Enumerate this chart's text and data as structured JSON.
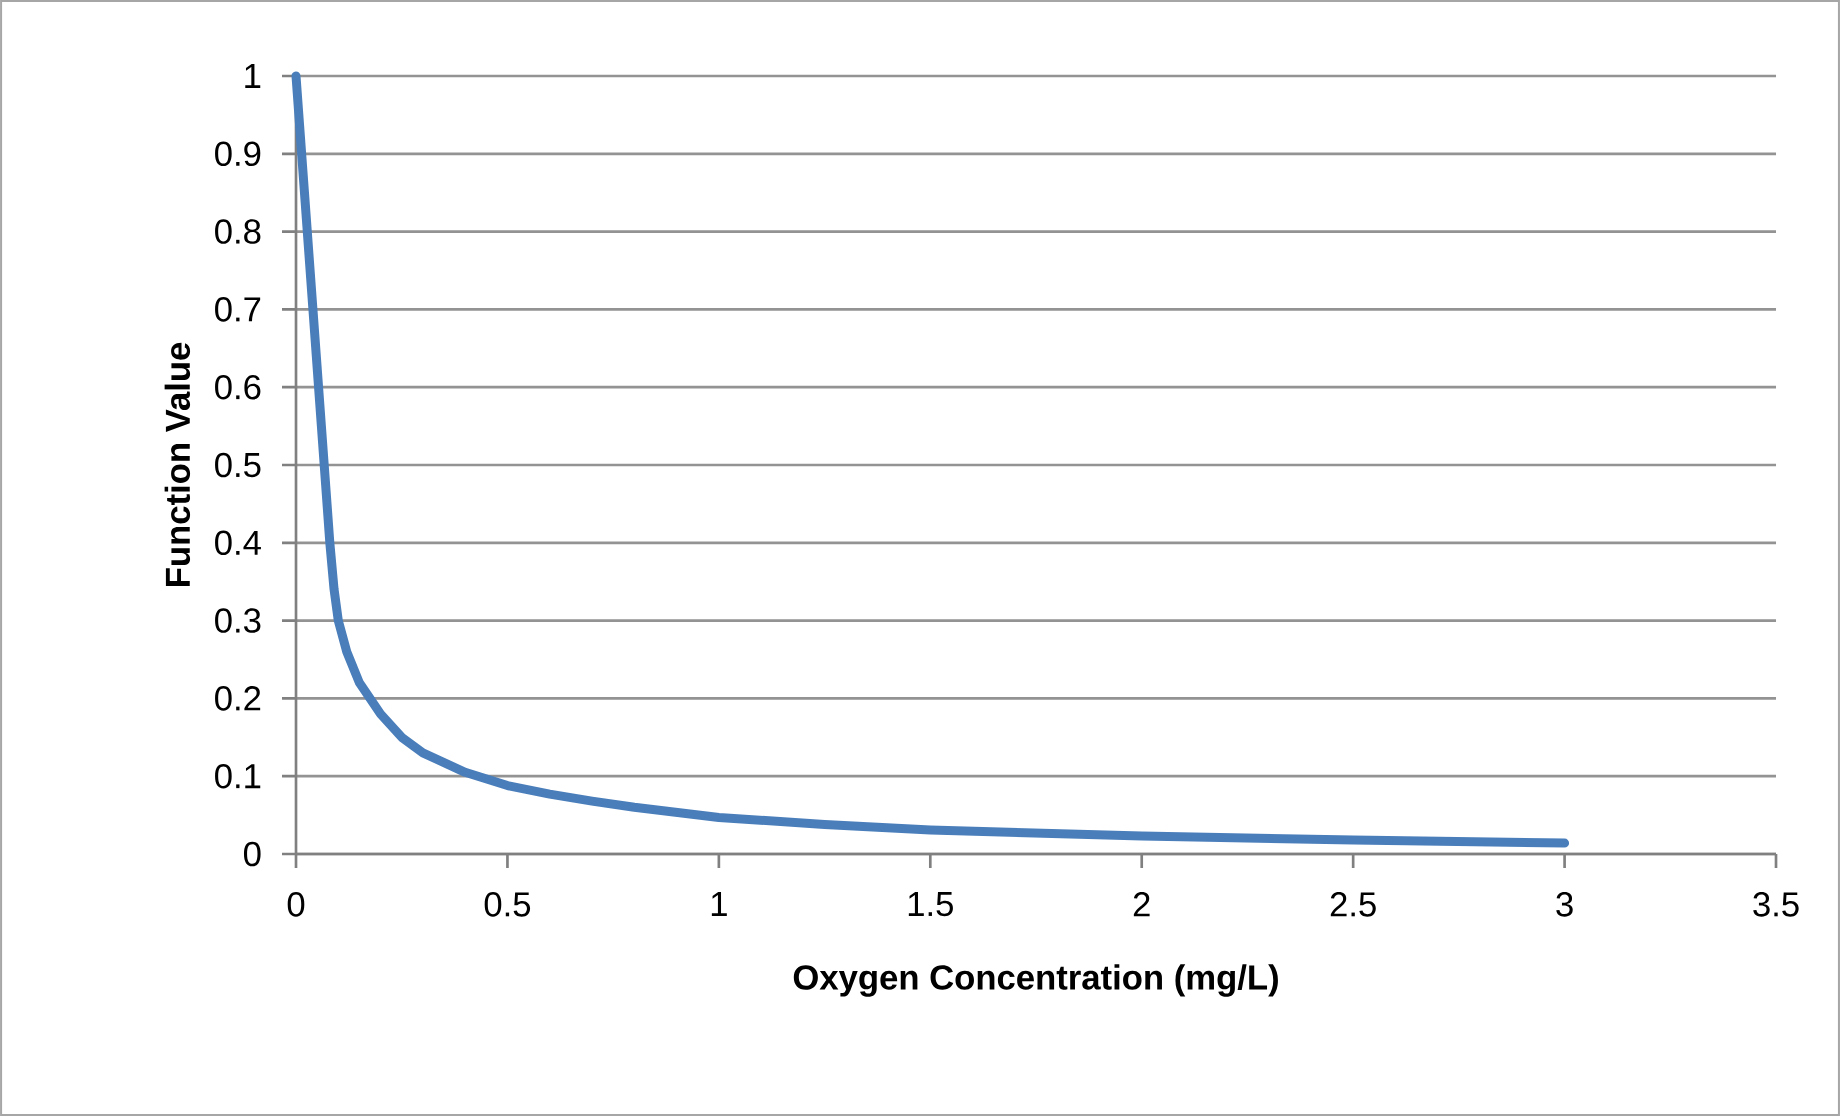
{
  "chart_data": {
    "type": "line",
    "xlabel": "Oxygen Concentration (mg/L)",
    "ylabel": "Function Value",
    "series": [
      {
        "color": "#4a7ebb",
        "x": [
          0,
          0.02,
          0.04,
          0.06,
          0.08,
          0.09,
          0.1,
          0.12,
          0.15,
          0.2,
          0.25,
          0.3,
          0.4,
          0.5,
          0.6,
          0.7,
          0.8,
          1,
          1.25,
          1.5,
          2,
          2.5,
          3
        ],
        "values": [
          1,
          0.85,
          0.7,
          0.55,
          0.4,
          0.34,
          0.3,
          0.26,
          0.22,
          0.18,
          0.15,
          0.13,
          0.105,
          0.088,
          0.077,
          0.068,
          0.06,
          0.047,
          0.038,
          0.031,
          0.023,
          0.018,
          0.014
        ]
      }
    ],
    "xlim": [
      0,
      3.5
    ],
    "ylim": [
      0,
      1
    ],
    "xticks": [
      0,
      0.5,
      1,
      1.5,
      2,
      2.5,
      3,
      3.5
    ],
    "yticks": [
      0,
      0.1,
      0.2,
      0.3,
      0.4,
      0.5,
      0.6,
      0.7,
      0.8,
      0.9,
      1
    ],
    "grid": "y",
    "marker": "none",
    "line_style": "solid"
  }
}
